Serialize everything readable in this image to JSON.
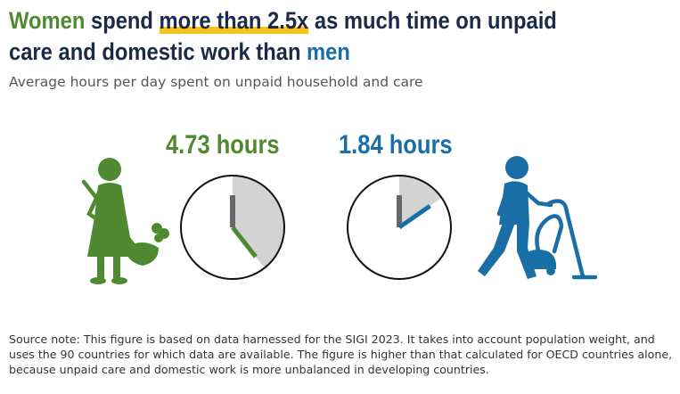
{
  "title": {
    "women": "Women",
    "part1": " spend ",
    "highlight": "more than 2.5x",
    "part2": " as much time on unpaid care and domestic work than ",
    "men": "men"
  },
  "subtitle": "Average hours per day spent on unpaid household and care",
  "chart_data": {
    "type": "clock",
    "unit": "hours per day",
    "series": [
      {
        "name": "Women",
        "value": 4.73,
        "label": "4.73 hours",
        "color": "#4f8a32"
      },
      {
        "name": "Men",
        "value": 1.84,
        "label": "1.84 hours",
        "color": "#1a6ea6"
      }
    ],
    "clock_max_hours": 12
  },
  "icons": {
    "women": "woman-sweeping-icon",
    "men": "man-vacuuming-icon"
  },
  "colors": {
    "women": "#4f8a32",
    "men": "#1a6ea6",
    "highlight": "#f7c21c",
    "title": "#1a2a47",
    "sector": "#d3d3d3"
  },
  "source_note": "Source note: This figure is based on data harnessed for the SIGI 2023. It takes into account population weight, and uses the 90 countries for which data are available. The figure is higher than that calculated for OECD countries alone, because unpaid care and domestic work is more unbalanced in developing countries."
}
